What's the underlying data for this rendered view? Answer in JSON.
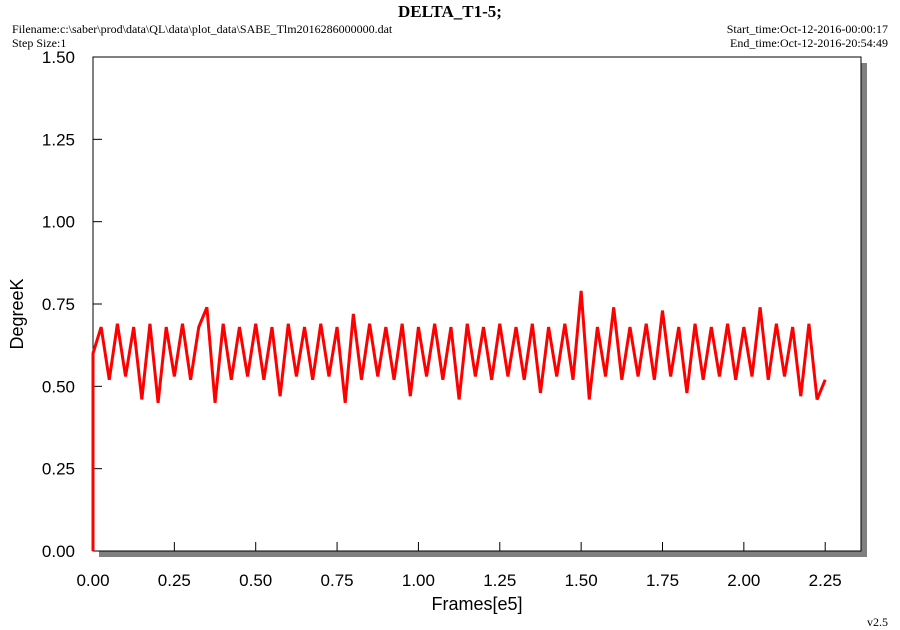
{
  "chart_data": {
    "type": "line",
    "title": "DELTA_T1-5;",
    "filename": "Filename:c:\\saber\\prod\\data\\QL\\data\\plot_data\\SABE_Tlm2016286000000.dat",
    "step_size": "Step Size:1",
    "start_time": "Start_time:Oct-12-2016-00:00:17",
    "end_time": "End_time:Oct-12-2016-20:54:49",
    "version": "v2.5",
    "xlabel": "Frames[e5]",
    "ylabel": "DegreeK",
    "xlim": [
      0,
      2.36
    ],
    "ylim": [
      0,
      1.5
    ],
    "xticks": [
      {
        "value": 0,
        "label": "0.00"
      },
      0.25,
      {
        "value": 0.5,
        "label": "0.50"
      },
      0.75,
      {
        "value": 1,
        "label": "1.00"
      },
      1.25,
      {
        "value": 1.5,
        "label": "1.50"
      },
      1.75,
      {
        "value": 2,
        "label": "2.00"
      },
      2.25
    ],
    "yticks": [
      {
        "value": 0,
        "label": "0.00"
      },
      0.25,
      {
        "value": 0.5,
        "label": "0.50"
      },
      0.75,
      {
        "value": 1,
        "label": "1.00"
      },
      1.25,
      {
        "value": 1.5,
        "label": "1.50"
      }
    ],
    "x": [
      0,
      0,
      0.025,
      0.05,
      0.075,
      0.1,
      0.125,
      0.15,
      0.175,
      0.2,
      0.225,
      0.25,
      0.275,
      0.3,
      0.325,
      0.35,
      0.375,
      0.4,
      0.425,
      0.45,
      0.475,
      0.5,
      0.525,
      0.55,
      0.575,
      0.6,
      0.625,
      0.65,
      0.675,
      0.7,
      0.725,
      0.75,
      0.775,
      0.8,
      0.825,
      0.85,
      0.875,
      0.9,
      0.925,
      0.95,
      0.975,
      1.0,
      1.025,
      1.05,
      1.075,
      1.1,
      1.125,
      1.15,
      1.175,
      1.2,
      1.225,
      1.25,
      1.275,
      1.3,
      1.325,
      1.35,
      1.375,
      1.4,
      1.425,
      1.45,
      1.475,
      1.5,
      1.525,
      1.55,
      1.575,
      1.6,
      1.625,
      1.65,
      1.675,
      1.7,
      1.725,
      1.75,
      1.775,
      1.8,
      1.825,
      1.85,
      1.875,
      1.9,
      1.925,
      1.95,
      1.975,
      2.0,
      2.025,
      2.05,
      2.075,
      2.1,
      2.125,
      2.15,
      2.175,
      2.2,
      2.225,
      2.25
    ],
    "series": [
      {
        "color": "#ff0000",
        "values": [
          0,
          0.6,
          0.68,
          0.52,
          0.69,
          0.53,
          0.68,
          0.46,
          0.69,
          0.45,
          0.68,
          0.53,
          0.69,
          0.52,
          0.68,
          0.74,
          0.45,
          0.69,
          0.52,
          0.68,
          0.53,
          0.69,
          0.52,
          0.68,
          0.47,
          0.69,
          0.53,
          0.68,
          0.52,
          0.69,
          0.53,
          0.68,
          0.45,
          0.72,
          0.52,
          0.69,
          0.53,
          0.68,
          0.52,
          0.69,
          0.47,
          0.68,
          0.53,
          0.69,
          0.52,
          0.68,
          0.46,
          0.69,
          0.53,
          0.68,
          0.52,
          0.69,
          0.53,
          0.68,
          0.52,
          0.69,
          0.48,
          0.68,
          0.53,
          0.69,
          0.52,
          0.79,
          0.46,
          0.68,
          0.53,
          0.74,
          0.52,
          0.68,
          0.53,
          0.69,
          0.52,
          0.73,
          0.53,
          0.68,
          0.48,
          0.69,
          0.52,
          0.68,
          0.53,
          0.69,
          0.52,
          0.68,
          0.53,
          0.74,
          0.52,
          0.69,
          0.53,
          0.68,
          0.47,
          0.69,
          0.46,
          0.52
        ]
      }
    ]
  }
}
